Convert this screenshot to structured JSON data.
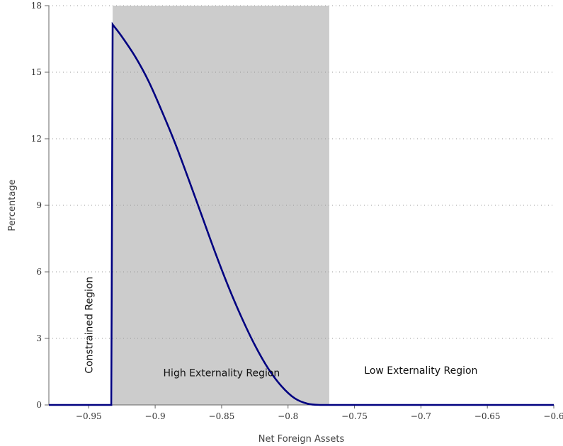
{
  "chart_data": {
    "type": "line",
    "xlabel": "Net Foreign Assets",
    "ylabel": "Percentage",
    "xlim": [
      -0.98,
      -0.6
    ],
    "ylim": [
      0,
      18
    ],
    "x_ticks": [
      -0.95,
      -0.9,
      -0.85,
      -0.8,
      -0.75,
      -0.7,
      -0.65,
      -0.6
    ],
    "x_tick_labels": [
      "−0.95",
      "−0.9",
      "−0.85",
      "−0.8",
      "−0.75",
      "−0.7",
      "−0.65",
      "−0.6"
    ],
    "y_ticks": [
      0,
      3,
      6,
      9,
      12,
      15,
      18
    ],
    "y_tick_labels": [
      "0",
      "3",
      "6",
      "9",
      "12",
      "15",
      "18"
    ],
    "grid": true,
    "line_color": "#000080",
    "shade_color": "#cccccc",
    "shaded_region": [
      -0.932,
      -0.769
    ],
    "regions": [
      {
        "label": "Constrained Region",
        "x": -0.95,
        "y": 3.6,
        "orientation": "vertical"
      },
      {
        "label": "High Externality Region",
        "x": -0.85,
        "y": 1.3,
        "orientation": "horizontal"
      },
      {
        "label": "Low Externality Region",
        "x": -0.7,
        "y": 1.4,
        "orientation": "horizontal"
      }
    ],
    "series": [
      {
        "x": [
          -0.98,
          -0.95,
          -0.933,
          -0.932,
          -0.925,
          -0.915,
          -0.905,
          -0.895,
          -0.885,
          -0.875,
          -0.865,
          -0.855,
          -0.845,
          -0.835,
          -0.825,
          -0.815,
          -0.805,
          -0.795,
          -0.785,
          -0.775,
          -0.769,
          -0.75,
          -0.7,
          -0.65,
          -0.6
        ],
        "y": [
          0,
          0,
          0,
          17.15,
          16.6,
          15.7,
          14.6,
          13.25,
          11.8,
          10.2,
          8.55,
          6.9,
          5.35,
          3.95,
          2.7,
          1.65,
          0.85,
          0.3,
          0.05,
          0.0,
          0.0,
          0.0,
          0.0,
          0.0,
          0.0
        ]
      }
    ]
  }
}
